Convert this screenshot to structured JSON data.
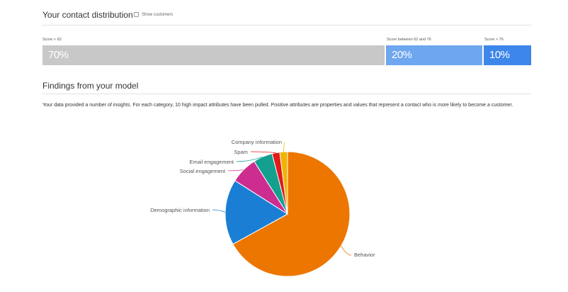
{
  "distribution": {
    "title": "Your contact distribution",
    "show_customers_label": "Show customers",
    "segments": [
      {
        "label": "Score < 62",
        "value": "70%",
        "share": 70,
        "color": "#c8c8c8"
      },
      {
        "label": "Score between 62 and 76",
        "value": "20%",
        "share": 20,
        "color": "#6ea6ef"
      },
      {
        "label": "Score > 76",
        "value": "10%",
        "share": 10,
        "color": "#3d86ea"
      }
    ]
  },
  "findings": {
    "title": "Findings from your model",
    "description": "Your data provided a number of insights. For each category, 10 high impact attributes have been pulled. Positive attributes are properties and values that represent a contact who is more likely to become a customer."
  },
  "chart_data": {
    "type": "pie",
    "slices": [
      {
        "label": "Behavior",
        "value": 67,
        "color": "#ec7600"
      },
      {
        "label": "Demographic information",
        "value": 17,
        "color": "#1a7fd4"
      },
      {
        "label": "Social engagement",
        "value": 7,
        "color": "#cc2d8f"
      },
      {
        "label": "Email engagement",
        "value": 5,
        "color": "#13a08f"
      },
      {
        "label": "Spam",
        "value": 2,
        "color": "#e01b1b"
      },
      {
        "label": "Company information",
        "value": 2,
        "color": "#f0b400"
      }
    ]
  }
}
